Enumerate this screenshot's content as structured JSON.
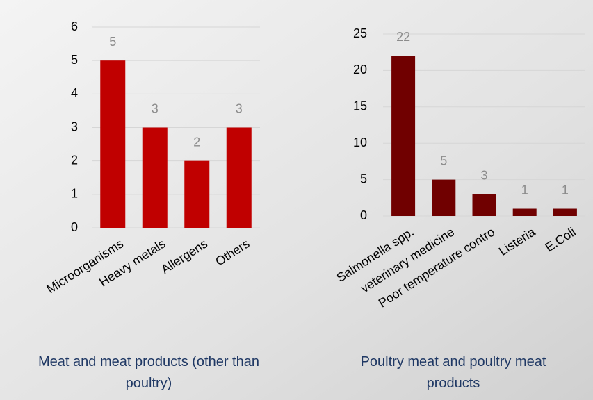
{
  "chart_data": [
    {
      "type": "bar",
      "title": "Meat and meat products (other than poultry)",
      "categories": [
        "Microorganisms",
        "Heavy metals",
        "Allergens",
        "Others"
      ],
      "values": [
        5,
        3,
        2,
        3
      ],
      "color": "#c00000",
      "ylim": [
        0,
        6
      ],
      "yticks": [
        0,
        1,
        2,
        3,
        4,
        5,
        6
      ],
      "grid": true
    },
    {
      "type": "bar",
      "title": "Poultry meat and poultry meat products",
      "categories": [
        "Salmonella spp.",
        "veterinary medicine",
        "Poor temperature contro",
        "Listeria",
        "E.Coli"
      ],
      "values": [
        22,
        5,
        3,
        1,
        1
      ],
      "color": "#700000",
      "ylim": [
        0,
        25
      ],
      "yticks": [
        0,
        5,
        10,
        15,
        20,
        25
      ],
      "grid": true
    }
  ]
}
